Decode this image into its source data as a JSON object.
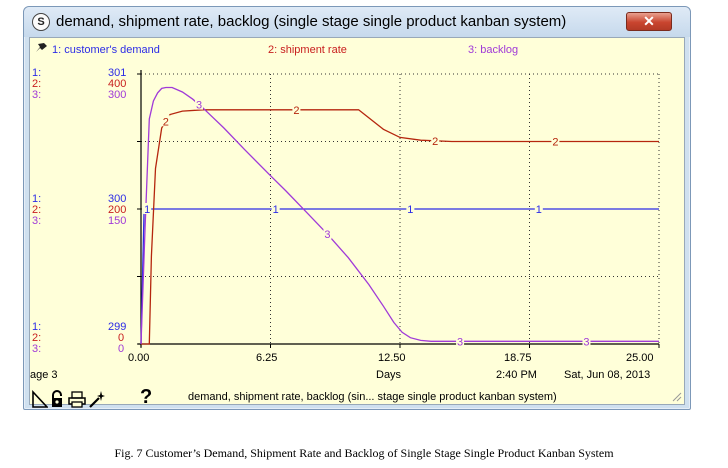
{
  "window": {
    "title": "demand, shipment rate, backlog (single stage single product kanban system)",
    "icon_letter": "S",
    "close_symbol": "✕"
  },
  "legend": {
    "series1": "1: customer's demand",
    "series2": "2: shipment rate",
    "series3": "3: backlog"
  },
  "axes": {
    "top": {
      "s1_tag": "1:",
      "s2_tag": "2:",
      "s3_tag": "3:",
      "s1": "301",
      "s2": "400",
      "s3": "300"
    },
    "mid": {
      "s1_tag": "1:",
      "s2_tag": "2:",
      "s3_tag": "3:",
      "s1": "300",
      "s2": "200",
      "s3": "150"
    },
    "bottom": {
      "s1_tag": "1:",
      "s2_tag": "2:",
      "s3_tag": "3:",
      "s1": "299",
      "s2": "0",
      "s3": "0"
    }
  },
  "footer": {
    "page": "age 3",
    "x_unit": "Days",
    "time": "2:40 PM",
    "date": "Sat, Jun 08, 2013",
    "status": "demand, shipment rate, backlog (sin... stage single product kanban system)",
    "help": "?"
  },
  "colors": {
    "s1": "#2c2ce6",
    "s2": "#b5260e",
    "s3": "#a03ad8",
    "background": "#ffffd9"
  },
  "chart_data": {
    "type": "line",
    "xlabel": "Days",
    "x_ticks": [
      "0.00",
      "6.25",
      "12.50",
      "18.75",
      "25.00"
    ],
    "xlim": [
      0,
      25
    ],
    "grid": true,
    "series": [
      {
        "name": "1: customer's demand",
        "ylim": [
          299,
          301
        ],
        "marker": "1",
        "x": [
          0,
          0.15,
          0.3,
          25
        ],
        "y": [
          299,
          300,
          300,
          300
        ]
      },
      {
        "name": "2: shipment rate",
        "ylim": [
          0,
          400
        ],
        "marker": "2",
        "x": [
          0,
          0.4,
          0.5,
          0.7,
          1.0,
          1.4,
          2.0,
          3.0,
          5.0,
          8.0,
          10.5,
          11.0,
          11.7,
          12.5,
          13.5,
          15,
          25
        ],
        "y": [
          0,
          0,
          130,
          260,
          320,
          340,
          345,
          347,
          347,
          347,
          347,
          335,
          318,
          306,
          302,
          300,
          300
        ]
      },
      {
        "name": "3: backlog",
        "ylim": [
          0,
          300
        ],
        "marker": "3",
        "x": [
          0,
          0.2,
          0.4,
          0.6,
          0.8,
          1.0,
          1.2,
          1.5,
          2.0,
          2.5,
          3.0,
          4.0,
          5.0,
          6.25,
          7.0,
          8.0,
          9.0,
          10.0,
          11.0,
          11.7,
          12.2,
          12.6,
          13.0,
          13.5,
          14,
          25
        ],
        "y": [
          0,
          130,
          250,
          270,
          279,
          284,
          285,
          285,
          280,
          272,
          262,
          240,
          216,
          187,
          170,
          146,
          122,
          96,
          66,
          42,
          24,
          13,
          7,
          4,
          3,
          3
        ]
      }
    ],
    "series_markers": [
      {
        "series": 0,
        "x": [
          0.3,
          6.5,
          13.0,
          19.2
        ]
      },
      {
        "series": 1,
        "x": [
          1.2,
          7.5,
          14.2,
          20.0
        ]
      },
      {
        "series": 2,
        "x": [
          2.8,
          9.0,
          15.4,
          21.5
        ]
      }
    ]
  }
}
